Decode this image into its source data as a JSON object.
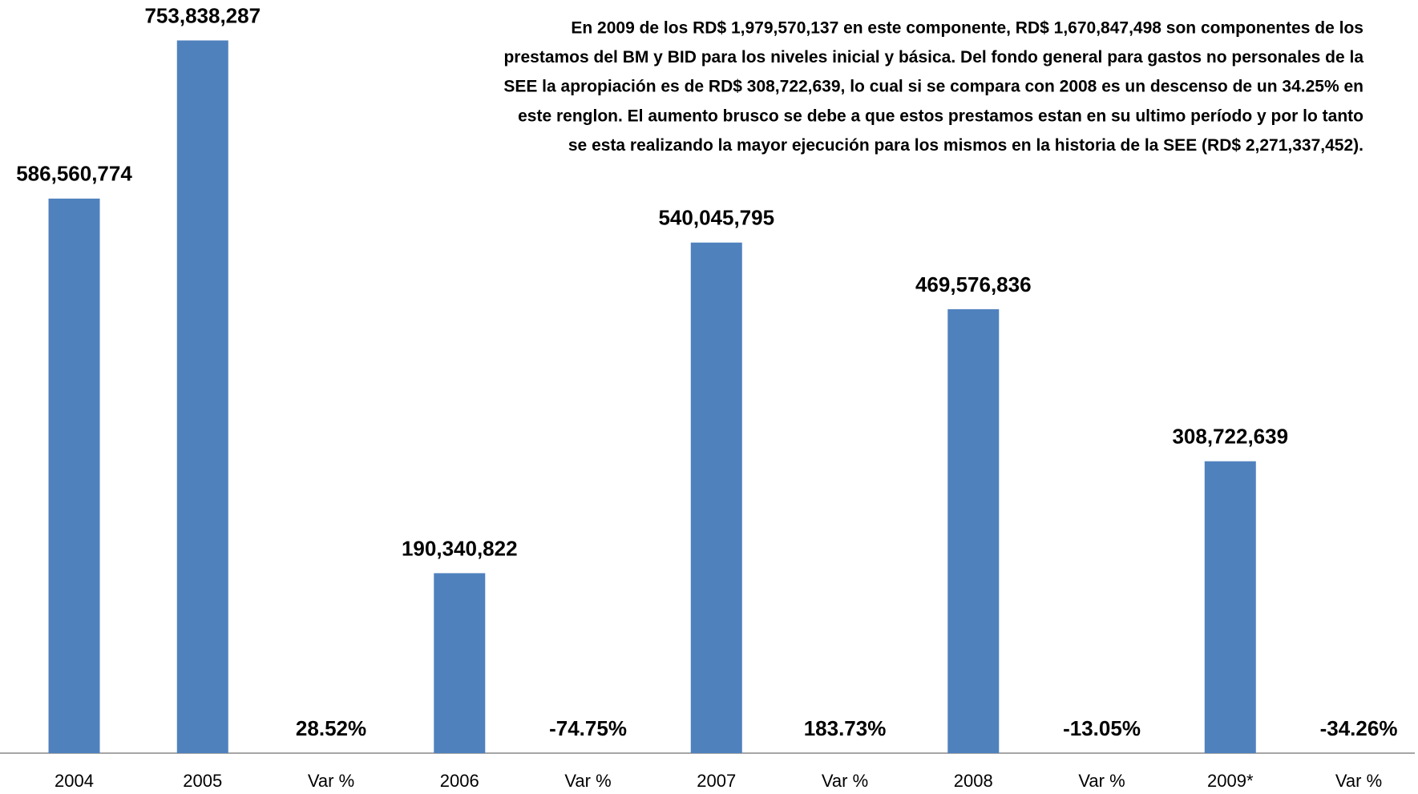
{
  "chart_data": {
    "type": "bar",
    "annotation": [
      "En 2009 de los RD$ 1,979,570,137 en este componente,  RD$ 1,670,847,498 son componentes de los",
      "prestamos del BM y BID para los niveles inicial y básica. Del fondo general para gastos no personales de la",
      "SEE la apropiación es de  RD$ 308,722,639, lo cual si se compara con 2008 es un descenso de un 34.25% en",
      "este renglon. El aumento brusco se debe a que estos prestamos estan en su ultimo período y por lo tanto",
      "se esta realizando la mayor ejecución para los mismos en la historia de la SEE (RD$ 2,271,337,452)."
    ],
    "categories": [
      "2004",
      "2005",
      "Var %",
      "2006",
      "Var %",
      "2007",
      "Var %",
      "2008",
      "Var %",
      "2009*",
      "Var %"
    ],
    "values": [
      586560774,
      753838287,
      28.52,
      190340822,
      -74.75,
      540045795,
      183.73,
      469576836,
      -13.05,
      308722639,
      -34.26
    ],
    "value_labels": [
      "586,560,774",
      "753,838,287",
      "28.52%",
      "190,340,822",
      "-74.75%",
      "540,045,795",
      "183.73%",
      "469,576,836",
      "-13.05%",
      "308,722,639",
      "-34.26%"
    ],
    "color": "#4f81bd",
    "ylim": [
      0,
      800000000
    ]
  }
}
